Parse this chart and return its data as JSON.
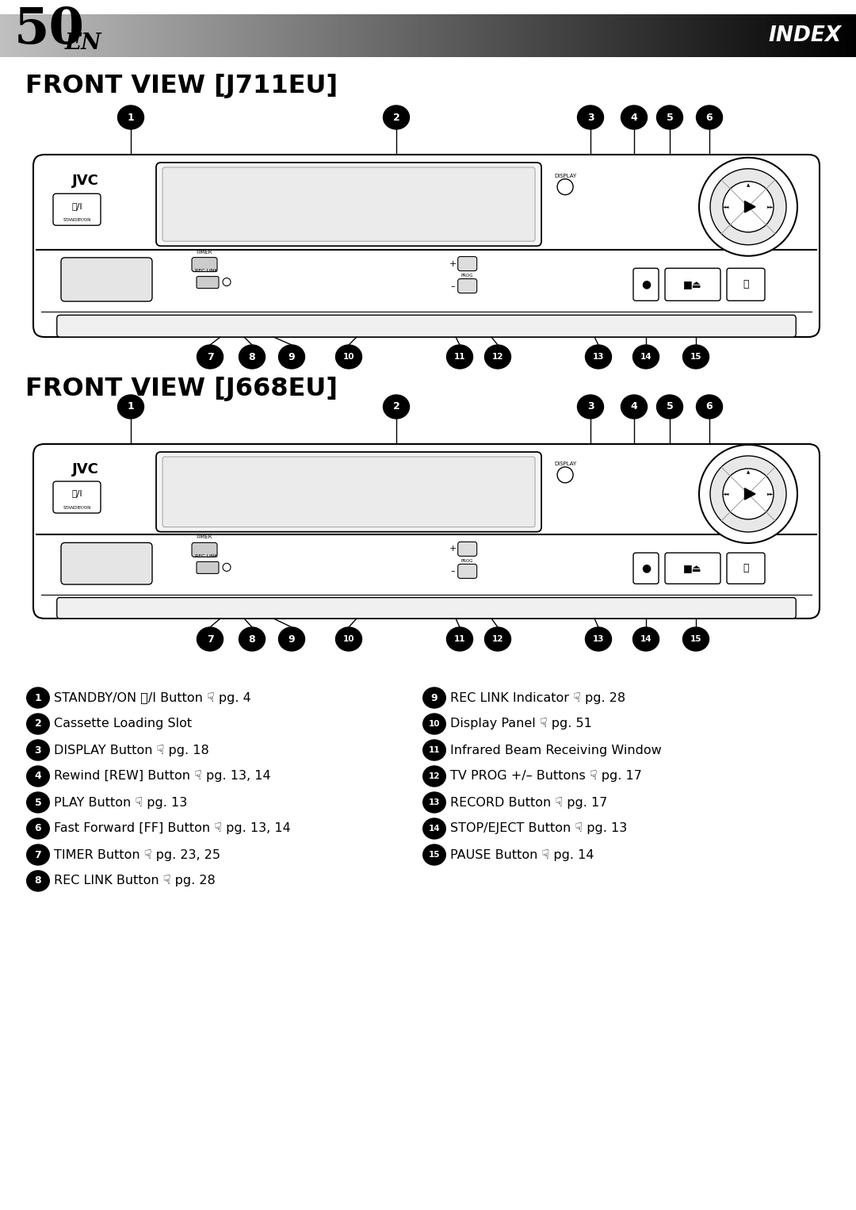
{
  "page_number": "50",
  "page_suffix": "EN",
  "header_label": "INDEX",
  "title1": "FRONT VIEW [J711EU]",
  "title2": "FRONT VIEW [J668EU]",
  "bg_color": "#ffffff",
  "legend_left": [
    "STANDBY/ON ⏻/I Button ☟ pg. 4",
    "Cassette Loading Slot",
    "DISPLAY Button ☟ pg. 18",
    "Rewind [REW] Button ☟ pg. 13, 14",
    "PLAY Button ☟ pg. 13",
    "Fast Forward [FF] Button ☟ pg. 13, 14",
    "TIMER Button ☟ pg. 23, 25",
    "REC LINK Button ☟ pg. 28"
  ],
  "legend_right": [
    "REC LINK Indicator ☟ pg. 28",
    "Display Panel ☟ pg. 51",
    "Infrared Beam Receiving Window",
    "TV PROG +/– Buttons ☟ pg. 17",
    "RECORD Button ☟ pg. 17",
    "STOP/EJECT Button ☟ pg. 13",
    "PAUSE Button ☟ pg. 14"
  ]
}
